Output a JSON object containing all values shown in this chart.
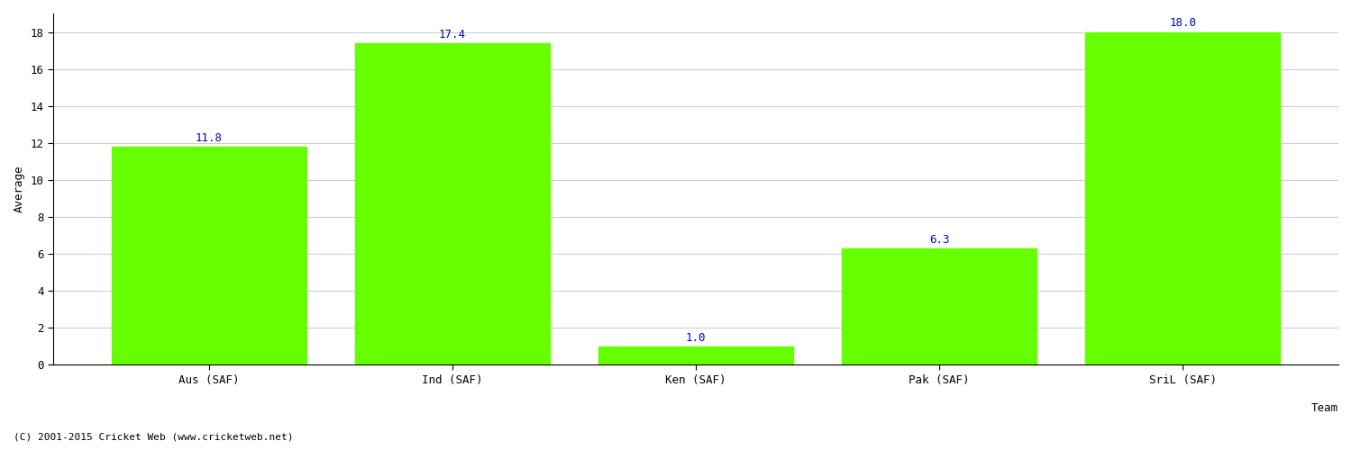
{
  "categories": [
    "Aus (SAF)",
    "Ind (SAF)",
    "Ken (SAF)",
    "Pak (SAF)",
    "SriL (SAF)"
  ],
  "values": [
    11.8,
    17.4,
    1.0,
    6.3,
    18.0
  ],
  "bar_color": "#66ff00",
  "bar_edge_color": "#66ff00",
  "xlabel": "Team",
  "ylabel": "Average",
  "ylim": [
    0,
    19
  ],
  "yticks": [
    0,
    2,
    4,
    6,
    8,
    10,
    12,
    14,
    16,
    18
  ],
  "label_color": "#0000cc",
  "label_fontsize": 9,
  "axis_label_fontsize": 9,
  "tick_fontsize": 9,
  "grid_color": "#cccccc",
  "bg_color": "#ffffff",
  "footer_text": "(C) 2001-2015 Cricket Web (www.cricketweb.net)",
  "footer_fontsize": 8
}
